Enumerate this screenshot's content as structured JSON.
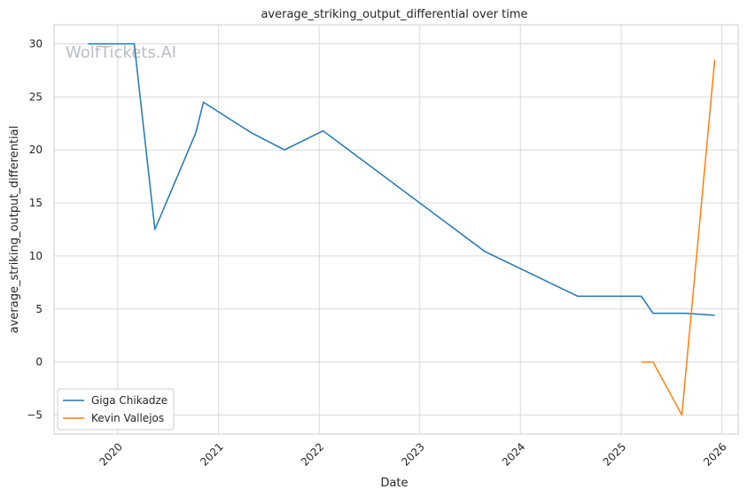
{
  "chart_data": {
    "type": "line",
    "title": "average_striking_output_differential over time",
    "xlabel": "Date",
    "ylabel": "average_striking_output_differential",
    "watermark": "WolfTickets.AI",
    "xlim": [
      "2019-05-15",
      "2026-03-01"
    ],
    "ylim": [
      -6.8,
      31.8
    ],
    "x_ticks": [
      "2020",
      "2021",
      "2022",
      "2023",
      "2024",
      "2025",
      "2026"
    ],
    "y_ticks": [
      -5,
      0,
      5,
      10,
      15,
      20,
      25,
      30
    ],
    "y_tick_labels": [
      "−5",
      "0",
      "5",
      "10",
      "15",
      "20",
      "25",
      "30"
    ],
    "grid": true,
    "legend_position": "lower-left",
    "series": [
      {
        "name": "Giga Chikadze",
        "color": "#1f77b4",
        "points": [
          [
            "2019-09-15",
            30.0
          ],
          [
            "2020-03-01",
            30.0
          ],
          [
            "2020-05-15",
            12.5
          ],
          [
            "2020-10-10",
            21.6
          ],
          [
            "2020-11-07",
            24.5
          ],
          [
            "2021-05-01",
            21.6
          ],
          [
            "2021-08-28",
            20.0
          ],
          [
            "2022-01-15",
            21.8
          ],
          [
            "2023-08-26",
            10.4
          ],
          [
            "2024-07-27",
            6.2
          ],
          [
            "2025-03-15",
            6.2
          ],
          [
            "2025-04-26",
            4.6
          ],
          [
            "2025-08-23",
            4.6
          ],
          [
            "2025-12-06",
            4.4
          ]
        ]
      },
      {
        "name": "Kevin Vallejos",
        "color": "#ff7f0e",
        "points": [
          [
            "2025-03-15",
            0.0
          ],
          [
            "2025-04-26",
            0.0
          ],
          [
            "2025-08-09",
            -5.0
          ],
          [
            "2025-12-06",
            28.5
          ]
        ]
      }
    ]
  }
}
